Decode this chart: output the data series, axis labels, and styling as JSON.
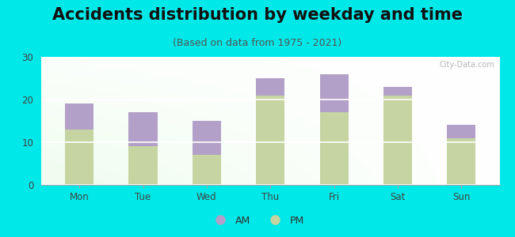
{
  "title": "Accidents distribution by weekday and time",
  "subtitle": "(Based on data from 1975 - 2021)",
  "categories": [
    "Mon",
    "Tue",
    "Wed",
    "Thu",
    "Fri",
    "Sat",
    "Sun"
  ],
  "pm_values": [
    13,
    9,
    7,
    21,
    17,
    21,
    11
  ],
  "am_values": [
    6,
    8,
    8,
    4,
    9,
    2,
    3
  ],
  "am_color": "#b3a0c8",
  "pm_color": "#c5d4a0",
  "background_color": "#00e8e8",
  "plot_bg_color": "#e8f5e8",
  "ylim": [
    0,
    30
  ],
  "yticks": [
    0,
    10,
    20,
    30
  ],
  "bar_width": 0.45,
  "legend_am": "AM",
  "legend_pm": "PM",
  "title_fontsize": 15,
  "subtitle_fontsize": 9,
  "tick_fontsize": 8.5,
  "watermark": "City-Data.com"
}
